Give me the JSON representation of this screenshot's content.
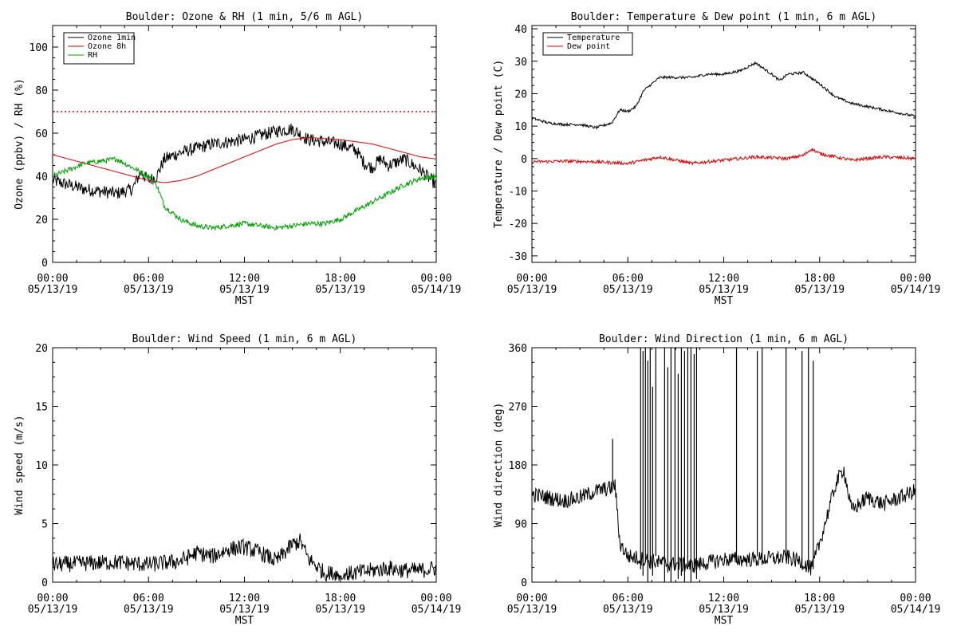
{
  "chart_data": [
    {
      "id": "ozone-rh",
      "type": "line",
      "title": "Boulder: Ozone & RH (1 min, 5/6 m AGL)",
      "xlabel": "MST",
      "ylabel": "Ozone (ppbv) / RH (%)",
      "xlim": [
        0,
        24
      ],
      "ylim": [
        0,
        110
      ],
      "yticks": [
        0,
        20,
        40,
        60,
        80,
        100
      ],
      "ytick_labels": [
        "0",
        "20",
        "40",
        "60",
        "80",
        "100"
      ],
      "xticks": [
        0,
        6,
        12,
        18,
        24
      ],
      "xtick_labels": [
        [
          "00:00",
          "05/13/19"
        ],
        [
          "06:00",
          "05/13/19"
        ],
        [
          "12:00",
          "05/13/19"
        ],
        [
          "18:00",
          "05/13/19"
        ],
        [
          "00:00",
          "05/14/19"
        ]
      ],
      "legend_position": "top-left",
      "reference_lines": [
        {
          "y": 70,
          "color": "#e00000",
          "style": "dotted"
        }
      ],
      "series": [
        {
          "name": "Ozone 1min",
          "color": "#000000",
          "noise": 3.0,
          "x": [
            0,
            1,
            2,
            3,
            4,
            5,
            5.5,
            6,
            6.5,
            7,
            8,
            9,
            10,
            11,
            12,
            13,
            14,
            15,
            16,
            17,
            18,
            19,
            19.5,
            20,
            20.5,
            21,
            22,
            23,
            24
          ],
          "y": [
            38,
            36,
            34,
            33,
            32,
            34,
            42,
            38,
            40,
            48,
            51,
            53,
            55,
            56,
            57,
            59,
            61,
            62,
            57,
            56,
            55,
            52,
            46,
            44,
            48,
            45,
            48,
            43,
            36
          ]
        },
        {
          "name": "Ozone 8h",
          "color": "#e00000",
          "noise": 0,
          "x": [
            0,
            1,
            2,
            3,
            4,
            5,
            6,
            7,
            8,
            9,
            10,
            11,
            12,
            13,
            14,
            15,
            16,
            17,
            18,
            19,
            20,
            21,
            22,
            23,
            24
          ],
          "y": [
            50,
            48,
            46,
            44,
            42,
            40,
            38,
            37,
            38,
            40,
            43,
            46,
            49,
            52,
            55,
            57,
            58,
            57.5,
            57,
            56,
            55,
            53,
            51,
            49,
            48
          ]
        },
        {
          "name": "RH",
          "color": "#00a000",
          "noise": 1.2,
          "x": [
            0,
            1,
            2,
            3,
            4,
            5,
            6,
            6.5,
            7,
            8,
            9,
            10,
            11,
            12,
            13,
            14,
            15,
            16,
            17,
            18,
            19,
            20,
            21,
            22,
            23,
            24
          ],
          "y": [
            40,
            43,
            46,
            47,
            48,
            44,
            40,
            36,
            26,
            20,
            17,
            16,
            17,
            18,
            17,
            16,
            17,
            18,
            18,
            20,
            24,
            28,
            32,
            36,
            39,
            40
          ]
        }
      ]
    },
    {
      "id": "temp-dew",
      "type": "line",
      "title": "Boulder: Temperature & Dew point (1 min, 6 m AGL)",
      "xlabel": "MST",
      "ylabel": "Temperature / Dew point (C)",
      "xlim": [
        0,
        24
      ],
      "ylim": [
        -32,
        41
      ],
      "yticks": [
        -30,
        -20,
        -10,
        0,
        10,
        20,
        30,
        40
      ],
      "ytick_labels": [
        "-30",
        "-20",
        "-10",
        "0",
        "10",
        "20",
        "30",
        "40"
      ],
      "xticks": [
        0,
        6,
        12,
        18,
        24
      ],
      "xtick_labels": [
        [
          "00:00",
          "05/13/19"
        ],
        [
          "06:00",
          "05/13/19"
        ],
        [
          "12:00",
          "05/13/19"
        ],
        [
          "18:00",
          "05/13/19"
        ],
        [
          "00:00",
          "05/14/19"
        ]
      ],
      "legend_position": "top-left",
      "series": [
        {
          "name": "Temperature",
          "color": "#000000",
          "noise": 0.4,
          "x": [
            0,
            1,
            2,
            3,
            4,
            5,
            5.5,
            6,
            6.5,
            7,
            8,
            9,
            10,
            11,
            12,
            13,
            14,
            15,
            15.5,
            16,
            17,
            18,
            19,
            20,
            21,
            22,
            23,
            24
          ],
          "y": [
            12.5,
            11,
            10.5,
            10.5,
            9.5,
            11,
            15,
            14.5,
            16,
            21,
            25,
            25,
            25,
            26,
            26,
            27,
            29.5,
            26,
            24,
            26,
            26.5,
            23,
            19,
            17,
            16,
            15,
            14,
            13
          ]
        },
        {
          "name": "Dew point",
          "color": "#e00000",
          "noise": 0.5,
          "x": [
            0,
            2,
            4,
            6,
            8,
            10,
            12,
            14,
            16,
            17,
            17.5,
            18,
            19,
            20,
            22,
            24
          ],
          "y": [
            -1,
            -0.8,
            -1,
            -1.5,
            0.5,
            -1.5,
            -0.5,
            0.5,
            0,
            1,
            3,
            1.5,
            0.5,
            -0.5,
            0.5,
            0
          ]
        }
      ]
    },
    {
      "id": "wind-speed",
      "type": "line",
      "title": "Boulder: Wind Speed (1 min, 6 m AGL)",
      "xlabel": "MST",
      "ylabel": "Wind speed (m/s)",
      "xlim": [
        0,
        24
      ],
      "ylim": [
        0,
        20
      ],
      "yticks": [
        0,
        5,
        10,
        15,
        20
      ],
      "ytick_labels": [
        "0",
        "5",
        "10",
        "15",
        "20"
      ],
      "xticks": [
        0,
        6,
        12,
        18,
        24
      ],
      "xtick_labels": [
        [
          "00:00",
          "05/13/19"
        ],
        [
          "06:00",
          "05/13/19"
        ],
        [
          "12:00",
          "05/13/19"
        ],
        [
          "18:00",
          "05/13/19"
        ],
        [
          "00:00",
          "05/14/19"
        ]
      ],
      "series": [
        {
          "name": "",
          "color": "#000000",
          "noise": 0.7,
          "x": [
            0,
            2,
            4,
            6,
            8,
            9,
            10,
            11,
            12,
            13,
            14,
            15,
            15.5,
            16,
            17,
            18,
            19,
            20,
            21,
            22,
            23,
            24
          ],
          "y": [
            1.5,
            1.6,
            1.7,
            1.5,
            1.8,
            2.5,
            2.2,
            2.8,
            3.0,
            2.5,
            1.8,
            3.2,
            3.5,
            2.0,
            0.8,
            0.6,
            0.8,
            1.0,
            1.2,
            1.0,
            1.0,
            1.2
          ]
        }
      ]
    },
    {
      "id": "wind-direction",
      "type": "line",
      "title": "Boulder: Wind Direction (1 min, 6 m AGL)",
      "xlabel": "MST",
      "ylabel": "Wind direction (deg)",
      "xlim": [
        0,
        24
      ],
      "ylim": [
        0,
        360
      ],
      "yticks": [
        0,
        90,
        180,
        270,
        360
      ],
      "ytick_labels": [
        "0",
        "90",
        "180",
        "270",
        "360"
      ],
      "xticks": [
        0,
        6,
        12,
        18,
        24
      ],
      "xtick_labels": [
        [
          "00:00",
          "05/13/19"
        ],
        [
          "06:00",
          "05/13/19"
        ],
        [
          "12:00",
          "05/13/19"
        ],
        [
          "18:00",
          "05/13/19"
        ],
        [
          "00:00",
          "05/14/19"
        ]
      ],
      "series": [
        {
          "name": "",
          "color": "#000000",
          "noise": 12,
          "x": [
            0,
            1,
            2,
            3,
            4,
            5,
            5.2,
            5.5,
            6,
            8,
            10,
            12,
            14,
            16,
            17,
            17.5,
            18,
            19,
            19.5,
            20,
            21,
            22,
            23,
            24
          ],
          "y": [
            135,
            130,
            125,
            130,
            140,
            145,
            150,
            60,
            40,
            30,
            25,
            35,
            35,
            38,
            30,
            20,
            60,
            150,
            175,
            110,
            130,
            120,
            130,
            140
          ]
        }
      ],
      "spikes": [
        {
          "x": 5.05,
          "y0": 150,
          "y1": 220
        },
        {
          "x": 6.8,
          "y0": 20,
          "y1": 360
        },
        {
          "x": 6.95,
          "y0": 10,
          "y1": 355
        },
        {
          "x": 7.1,
          "y0": 30,
          "y1": 360
        },
        {
          "x": 7.25,
          "y0": 0,
          "y1": 340
        },
        {
          "x": 7.4,
          "y0": 20,
          "y1": 360
        },
        {
          "x": 7.55,
          "y0": 10,
          "y1": 300
        },
        {
          "x": 7.75,
          "y0": 40,
          "y1": 360
        },
        {
          "x": 8.3,
          "y0": 0,
          "y1": 360
        },
        {
          "x": 8.5,
          "y0": 15,
          "y1": 330
        },
        {
          "x": 8.7,
          "y0": 0,
          "y1": 360
        },
        {
          "x": 8.95,
          "y0": 20,
          "y1": 360
        },
        {
          "x": 9.15,
          "y0": 5,
          "y1": 320
        },
        {
          "x": 9.35,
          "y0": 10,
          "y1": 360
        },
        {
          "x": 9.55,
          "y0": 0,
          "y1": 355
        },
        {
          "x": 9.75,
          "y0": 20,
          "y1": 360
        },
        {
          "x": 9.95,
          "y0": 0,
          "y1": 360
        },
        {
          "x": 10.15,
          "y0": 15,
          "y1": 350
        },
        {
          "x": 10.3,
          "y0": 5,
          "y1": 360
        },
        {
          "x": 12.8,
          "y0": 30,
          "y1": 360
        },
        {
          "x": 14.1,
          "y0": 40,
          "y1": 355
        },
        {
          "x": 14.4,
          "y0": 35,
          "y1": 360
        },
        {
          "x": 15.9,
          "y0": 35,
          "y1": 360
        },
        {
          "x": 16.9,
          "y0": 30,
          "y1": 355
        },
        {
          "x": 17.3,
          "y0": 15,
          "y1": 360
        },
        {
          "x": 17.6,
          "y0": 20,
          "y1": 340
        }
      ]
    }
  ]
}
